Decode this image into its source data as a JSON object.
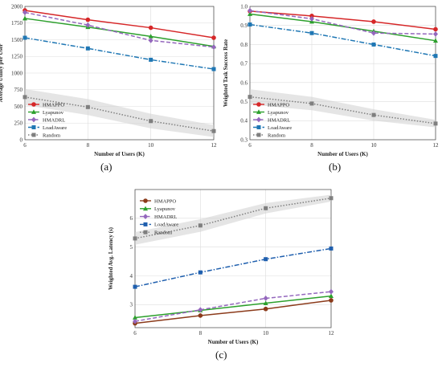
{
  "chart_data": [
    {
      "type": "line",
      "caption": "(a)",
      "x": [
        6,
        8,
        10,
        12
      ],
      "xlabel": "Number of Users (K)",
      "ylabel": "Average Utility per User",
      "xlim": [
        6,
        12
      ],
      "ylim": [
        0,
        2000
      ],
      "yticks": [
        0,
        250,
        500,
        750,
        1000,
        1250,
        1500,
        1750,
        2000
      ],
      "xticks": [
        6,
        8,
        10,
        12
      ],
      "grid": true,
      "legend": "left",
      "series": [
        {
          "name": "HMAPPO",
          "values": [
            1940,
            1800,
            1680,
            1530
          ],
          "color": "#d62728",
          "marker": "circle",
          "dash": "solid"
        },
        {
          "name": "Lyapunov",
          "values": [
            1820,
            1690,
            1550,
            1400
          ],
          "color": "#2ca02c",
          "marker": "triangle",
          "dash": "solid"
        },
        {
          "name": "HMADRL",
          "values": [
            1910,
            1720,
            1490,
            1390
          ],
          "color": "#9467bd",
          "marker": "diamond",
          "dash": "dash"
        },
        {
          "name": "LoadAware",
          "values": [
            1530,
            1370,
            1200,
            1060
          ],
          "color": "#1f77b4",
          "marker": "square",
          "dash": "dashdot"
        },
        {
          "name": "Random",
          "values": [
            640,
            490,
            280,
            130
          ],
          "color": "#7f7f7f",
          "marker": "square",
          "dash": "dot",
          "band": [
            120,
            120,
            110,
            90
          ]
        }
      ]
    },
    {
      "type": "line",
      "caption": "(b)",
      "x": [
        6,
        8,
        10,
        12
      ],
      "xlabel": "Number of Users (K)",
      "ylabel": "Weighted Task Success Rate",
      "xlim": [
        6,
        12
      ],
      "ylim": [
        0.3,
        1.0
      ],
      "yticks": [
        0.3,
        0.4,
        0.5,
        0.6,
        0.7,
        0.8,
        0.9,
        1.0
      ],
      "xticks": [
        6,
        8,
        10,
        12
      ],
      "grid": true,
      "legend": "left",
      "series": [
        {
          "name": "HMAPPO",
          "values": [
            0.975,
            0.95,
            0.92,
            0.88
          ],
          "color": "#d62728",
          "marker": "circle",
          "dash": "solid"
        },
        {
          "name": "Lyapunov",
          "values": [
            0.96,
            0.92,
            0.87,
            0.82
          ],
          "color": "#2ca02c",
          "marker": "triangle",
          "dash": "solid"
        },
        {
          "name": "HMADRL",
          "values": [
            0.978,
            0.935,
            0.86,
            0.855
          ],
          "color": "#9467bd",
          "marker": "diamond",
          "dash": "dash"
        },
        {
          "name": "LoadAware",
          "values": [
            0.905,
            0.86,
            0.8,
            0.74
          ],
          "color": "#1f77b4",
          "marker": "square",
          "dash": "dashdot"
        },
        {
          "name": "Random",
          "values": [
            0.525,
            0.49,
            0.43,
            0.385
          ],
          "color": "#7f7f7f",
          "marker": "square",
          "dash": "dot",
          "band": [
            0.04,
            0.035,
            0.03,
            0.02
          ]
        }
      ]
    },
    {
      "type": "line",
      "caption": "(c)",
      "x": [
        6,
        8,
        10,
        12
      ],
      "xlabel": "Number of Users (K)",
      "ylabel": "Weighted Avg. Latency (s)",
      "xlim": [
        6,
        12
      ],
      "ylim": [
        2.2,
        7.0
      ],
      "yticks": [
        3,
        4,
        5,
        6
      ],
      "xticks": [
        6,
        8,
        10,
        12
      ],
      "grid": true,
      "legend": "top-left",
      "series": [
        {
          "name": "HMAPPO",
          "values": [
            2.35,
            2.62,
            2.85,
            3.15
          ],
          "color": "#8b3a1a",
          "marker": "circle",
          "dash": "solid"
        },
        {
          "name": "Lyapunov",
          "values": [
            2.55,
            2.8,
            3.05,
            3.3
          ],
          "color": "#2ca02c",
          "marker": "triangle",
          "dash": "solid"
        },
        {
          "name": "HMADRL",
          "values": [
            2.42,
            2.82,
            3.22,
            3.45
          ],
          "color": "#9467bd",
          "marker": "diamond",
          "dash": "dash"
        },
        {
          "name": "LoadAware",
          "values": [
            3.62,
            4.12,
            4.58,
            4.95
          ],
          "color": "#1f5fae",
          "marker": "square",
          "dash": "dashdot"
        },
        {
          "name": "Random",
          "values": [
            5.3,
            5.75,
            6.35,
            6.7
          ],
          "color": "#7f7f7f",
          "marker": "square",
          "dash": "dot",
          "band": [
            0.22,
            0.22,
            0.18,
            0.12
          ]
        }
      ]
    }
  ]
}
